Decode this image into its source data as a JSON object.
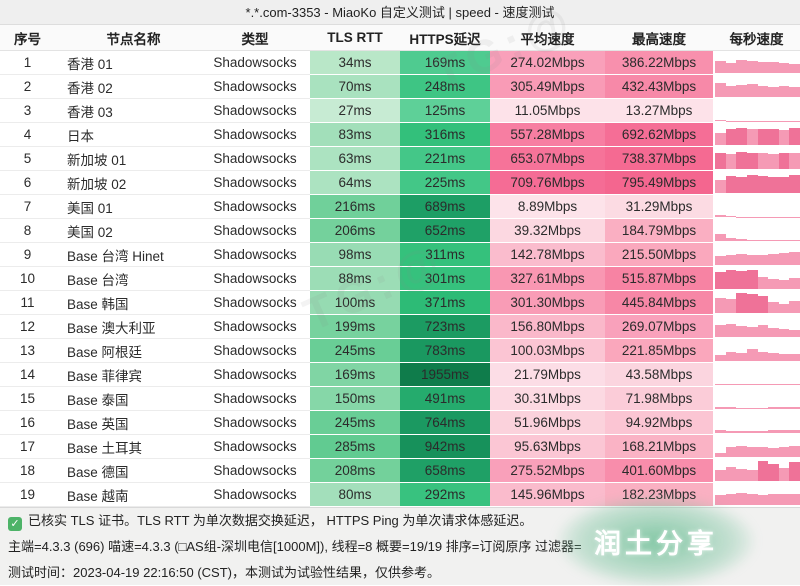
{
  "title": "*.*.com-3353 - MiaoKo 自定义测试 | speed - 速度测试",
  "columns": [
    "序号",
    "节点名称",
    "类型",
    "TLS RTT",
    "HTTPS延迟",
    "平均速度",
    "最高速度",
    "每秒速度"
  ],
  "rows": [
    {
      "idx": "1",
      "name": "香港 01",
      "type": "Shadowsocks",
      "tls": "34ms",
      "https": "169ms",
      "avg": "274.02Mbps",
      "max": "386.22Mbps",
      "colors": {
        "tls": "#b9e7c8",
        "https": "#4fcb90",
        "avg": "#f9a0ba",
        "max": "#f890ad"
      },
      "spark": [
        0.55,
        0.45,
        0.6,
        0.55,
        0.5,
        0.5,
        0.45,
        0.4
      ]
    },
    {
      "idx": "2",
      "name": "香港 02",
      "type": "Shadowsocks",
      "tls": "70ms",
      "https": "248ms",
      "avg": "305.49Mbps",
      "max": "432.43Mbps",
      "colors": {
        "tls": "#a9e2bf",
        "https": "#3ec584",
        "avg": "#f99bb6",
        "max": "#f789a8"
      },
      "spark": [
        0.65,
        0.5,
        0.55,
        0.6,
        0.5,
        0.45,
        0.5,
        0.45
      ]
    },
    {
      "idx": "3",
      "name": "香港 03",
      "type": "Shadowsocks",
      "tls": "27ms",
      "https": "125ms",
      "avg": "11.05Mbps",
      "max": "13.27Mbps",
      "colors": {
        "tls": "#c7ebd3",
        "https": "#5ed098",
        "avg": "#fde2e9",
        "max": "#fde2e9"
      },
      "spark": [
        0.05,
        0.02,
        0.02,
        0.02,
        0.02,
        0.02,
        0.02,
        0.02
      ]
    },
    {
      "idx": "4",
      "name": "日本",
      "type": "Shadowsocks",
      "tls": "83ms",
      "https": "316ms",
      "avg": "557.28Mbps",
      "max": "692.62Mbps",
      "colors": {
        "tls": "#a2dfba",
        "https": "#33c07b",
        "avg": "#f77ea2",
        "max": "#f56e96"
      },
      "spark": [
        0.55,
        0.75,
        0.78,
        0.72,
        0.75,
        0.73,
        0.7,
        0.78
      ]
    },
    {
      "idx": "5",
      "name": "新加坡 01",
      "type": "Shadowsocks",
      "tls": "63ms",
      "https": "221ms",
      "avg": "653.07Mbps",
      "max": "738.37Mbps",
      "colors": {
        "tls": "#ace3c1",
        "https": "#44c788",
        "avg": "#f67399",
        "max": "#f56a92"
      },
      "spark": [
        0.75,
        0.7,
        0.78,
        0.75,
        0.72,
        0.7,
        0.75,
        0.72
      ]
    },
    {
      "idx": "6",
      "name": "新加坡 02",
      "type": "Shadowsocks",
      "tls": "64ms",
      "https": "225ms",
      "avg": "709.76Mbps",
      "max": "795.49Mbps",
      "colors": {
        "tls": "#ace3c1",
        "https": "#43c787",
        "avg": "#f56c95",
        "max": "#f4668f"
      },
      "spark": [
        0.6,
        0.78,
        0.75,
        0.8,
        0.78,
        0.75,
        0.73,
        0.8
      ]
    },
    {
      "idx": "7",
      "name": "美国 01",
      "type": "Shadowsocks",
      "tls": "216ms",
      "https": "689ms",
      "avg": "8.89Mbps",
      "max": "31.29Mbps",
      "colors": {
        "tls": "#70d09a",
        "https": "#1d9e65",
        "avg": "#fde3ea",
        "max": "#fcdbe3"
      },
      "spark": [
        0.1,
        0.03,
        0.02,
        0.02,
        0.02,
        0.02,
        0.02,
        0.02
      ]
    },
    {
      "idx": "8",
      "name": "美国 02",
      "type": "Shadowsocks",
      "tls": "206ms",
      "https": "652ms",
      "avg": "39.32Mbps",
      "max": "184.79Mbps",
      "colors": {
        "tls": "#74d19c",
        "https": "#1fa167",
        "avg": "#fcd8e1",
        "max": "#faafc2"
      },
      "spark": [
        0.32,
        0.14,
        0.08,
        0.05,
        0.04,
        0.04,
        0.04,
        0.04
      ]
    },
    {
      "idx": "9",
      "name": "Base 台湾 Hinet",
      "type": "Shadowsocks",
      "tls": "98ms",
      "https": "311ms",
      "avg": "142.78Mbps",
      "max": "215.50Mbps",
      "colors": {
        "tls": "#98dcb4",
        "https": "#35c17c",
        "avg": "#fabccd",
        "max": "#faa8bd"
      },
      "spark": [
        0.4,
        0.45,
        0.5,
        0.45,
        0.45,
        0.5,
        0.55,
        0.6
      ]
    },
    {
      "idx": "10",
      "name": "Base 台湾",
      "type": "Shadowsocks",
      "tls": "88ms",
      "https": "301ms",
      "avg": "327.61Mbps",
      "max": "515.87Mbps",
      "colors": {
        "tls": "#9cddb6",
        "https": "#36c17d",
        "avg": "#f997b2",
        "max": "#f783a3"
      },
      "spark": [
        0.78,
        0.85,
        0.8,
        0.85,
        0.55,
        0.45,
        0.4,
        0.5
      ]
    },
    {
      "idx": "11",
      "name": "Base 韩国",
      "type": "Shadowsocks",
      "tls": "100ms",
      "https": "371ms",
      "avg": "301.30Mbps",
      "max": "445.84Mbps",
      "colors": {
        "tls": "#96dbb2",
        "https": "#2dbb76",
        "avg": "#f99cb6",
        "max": "#f787a6"
      },
      "spark": [
        0.7,
        0.62,
        0.9,
        0.85,
        0.78,
        0.5,
        0.42,
        0.55
      ]
    },
    {
      "idx": "12",
      "name": "Base 澳大利亚",
      "type": "Shadowsocks",
      "tls": "199ms",
      "https": "723ms",
      "avg": "156.80Mbps",
      "max": "269.07Mbps",
      "colors": {
        "tls": "#77d29e",
        "https": "#1c9b62",
        "avg": "#fab8ca",
        "max": "#f9a1bb"
      },
      "spark": [
        0.55,
        0.6,
        0.5,
        0.45,
        0.55,
        0.42,
        0.35,
        0.3
      ]
    },
    {
      "idx": "13",
      "name": "Base 阿根廷",
      "type": "Shadowsocks",
      "tls": "245ms",
      "https": "783ms",
      "avg": "100.03Mbps",
      "max": "221.85Mbps",
      "colors": {
        "tls": "#69ce96",
        "https": "#1a9860",
        "avg": "#fbc5d3",
        "max": "#faa7bc"
      },
      "spark": [
        0.28,
        0.4,
        0.35,
        0.55,
        0.42,
        0.35,
        0.32,
        0.3
      ]
    },
    {
      "idx": "14",
      "name": "Base 菲律宾",
      "type": "Shadowsocks",
      "tls": "169ms",
      "https": "1955ms",
      "avg": "21.79Mbps",
      "max": "43.58Mbps",
      "colors": {
        "tls": "#80d5a4",
        "https": "#0f7c4b",
        "avg": "#fcdde6",
        "max": "#fbd5df"
      },
      "spark": [
        0.06,
        0.05,
        0.05,
        0.05,
        0.05,
        0.05,
        0.05,
        0.05
      ]
    },
    {
      "idx": "15",
      "name": "Base 泰国",
      "type": "Shadowsocks",
      "tls": "150ms",
      "https": "491ms",
      "avg": "30.31Mbps",
      "max": "71.98Mbps",
      "colors": {
        "tls": "#86d7a8",
        "https": "#25ab6d",
        "avg": "#fcd9e2",
        "max": "#fbccd8"
      },
      "spark": [
        0.1,
        0.07,
        0.06,
        0.06,
        0.06,
        0.07,
        0.08,
        0.08
      ]
    },
    {
      "idx": "16",
      "name": "Base 英国",
      "type": "Shadowsocks",
      "tls": "245ms",
      "https": "764ms",
      "avg": "51.96Mbps",
      "max": "94.92Mbps",
      "colors": {
        "tls": "#69ce96",
        "https": "#1b9961",
        "avg": "#fbd2dc",
        "max": "#fbc5d3"
      },
      "spark": [
        0.12,
        0.1,
        0.1,
        0.1,
        0.11,
        0.12,
        0.13,
        0.14
      ]
    },
    {
      "idx": "17",
      "name": "Base 土耳其",
      "type": "Shadowsocks",
      "tls": "285ms",
      "https": "942ms",
      "avg": "95.63Mbps",
      "max": "168.21Mbps",
      "colors": {
        "tls": "#61cb91",
        "https": "#17915b",
        "avg": "#fbc6d4",
        "max": "#fab3c5"
      },
      "spark": [
        0.18,
        0.45,
        0.5,
        0.45,
        0.45,
        0.42,
        0.45,
        0.5
      ]
    },
    {
      "idx": "18",
      "name": "Base 德国",
      "type": "Shadowsocks",
      "tls": "208ms",
      "https": "658ms",
      "avg": "275.52Mbps",
      "max": "401.60Mbps",
      "colors": {
        "tls": "#73d19b",
        "https": "#1fa066",
        "avg": "#f9a0ba",
        "max": "#f88dab"
      },
      "spark": [
        0.5,
        0.62,
        0.55,
        0.5,
        0.9,
        0.78,
        0.6,
        0.85
      ]
    },
    {
      "idx": "19",
      "name": "Base 越南",
      "type": "Shadowsocks",
      "tls": "80ms",
      "https": "292ms",
      "avg": "145.96Mbps",
      "max": "182.23Mbps",
      "colors": {
        "tls": "#a3dfbb",
        "https": "#38c27f",
        "avg": "#fabbcc",
        "max": "#fab0c2"
      },
      "spark": [
        0.45,
        0.5,
        0.55,
        0.5,
        0.45,
        0.5,
        0.52,
        0.48
      ]
    }
  ],
  "footer": {
    "check_icon": "✓",
    "line1": "已核实 TLS 证书。TLS RTT 为单次数据交换延迟， HTTPS Ping 为单次请求体感延迟。",
    "line2": "主端=4.3.3 (696) 喵速=4.3.3 (□AS组-深圳电信[1000M]), 线程=8 概要=19/19 排序=订阅原序 过滤器=",
    "line3": "测试时间：2023-04-19 22:16:50 (CST)，本测试为试验性结果，仅供参考。"
  },
  "watermark": {
    "label": "润土分享",
    "diagonal": "TG:@"
  },
  "theme": {
    "spark_base": "#f59ab5",
    "spark_strong": "#ef7298",
    "check_green": "#4db368",
    "green_light_min": "#c7ebd3",
    "green_deep_max": "#0f7c4b",
    "pink_light": "#fde3ea",
    "pink_deep": "#f4668f"
  }
}
